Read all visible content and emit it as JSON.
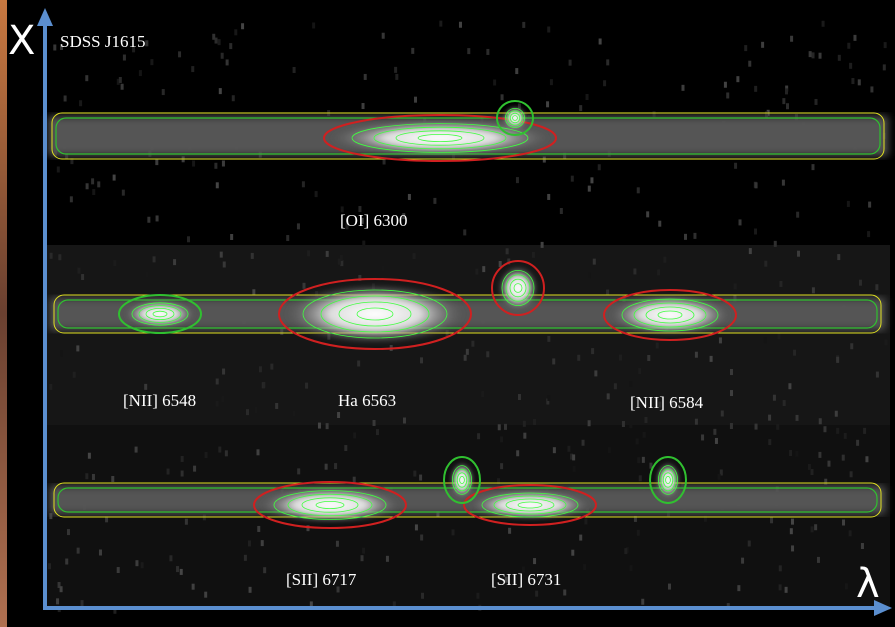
{
  "title": "SDSS J1615",
  "axes": {
    "y_label": "X",
    "x_label": "λ"
  },
  "panels": [
    {
      "lines": [
        {
          "label": "[OI] 6300"
        }
      ]
    },
    {
      "lines": [
        {
          "label": "[NII] 6548"
        },
        {
          "label": "Ha 6563"
        },
        {
          "label": "[NII] 6584"
        }
      ]
    },
    {
      "lines": [
        {
          "label": "[SII] 6717"
        },
        {
          "label": "[SII] 6731"
        }
      ]
    }
  ]
}
